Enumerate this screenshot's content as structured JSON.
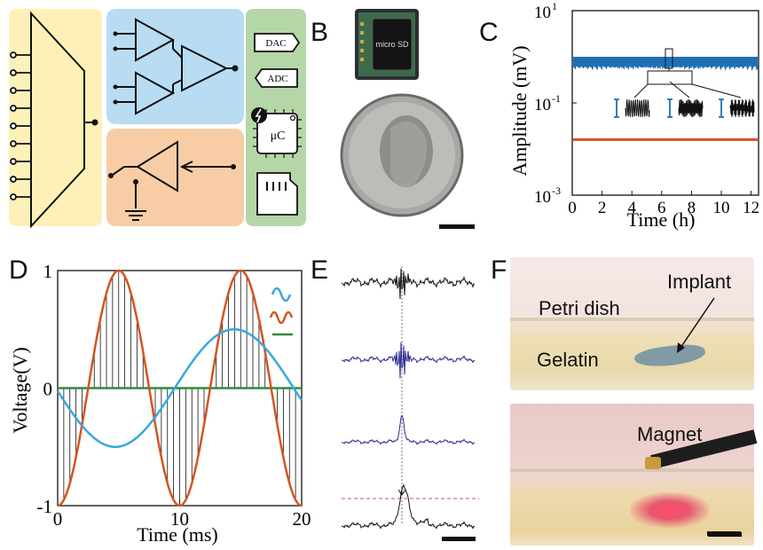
{
  "panels": {
    "A": {
      "label": "A",
      "chips": {
        "dac": "DAC",
        "adc": "ADC",
        "mcu": "μC"
      },
      "colors": {
        "mux": "#fdf1b8",
        "amp": "#b8dcf2",
        "stim": "#f8cda6",
        "ctrl": "#b5d7a8"
      }
    },
    "B": {
      "label": "B",
      "card_text": "micro SD"
    },
    "C": {
      "label": "C",
      "ylabel": "Amplitude (mV)",
      "xlabel": "Time (h)",
      "yticks": [
        "10",
        "10",
        "10"
      ],
      "yexp": [
        "1",
        "-1",
        "-3"
      ],
      "xticks": [
        "0",
        "2",
        "4",
        "6",
        "8",
        "10",
        "12"
      ]
    },
    "D": {
      "label": "D",
      "ylabel": "Voltage(V)",
      "xlabel": "Time (ms)",
      "yticks": [
        "1",
        "0",
        "-1"
      ],
      "xticks": [
        "0",
        "10",
        "20"
      ]
    },
    "E": {
      "label": "E"
    },
    "F": {
      "label": "F",
      "petri": "Petri dish",
      "implant": "Implant",
      "gelatin": "Gelatin",
      "magnet": "Magnet"
    }
  },
  "chart_data": [
    {
      "type": "line",
      "panel": "C",
      "xlabel": "Time (h)",
      "ylabel": "Amplitude (mV)",
      "xlim": [
        0,
        12.5
      ],
      "ylim": [
        0.001,
        10
      ],
      "yscale": "log",
      "series": [
        {
          "color": "#1f6fb5",
          "values_x": [
            0,
            12.5
          ],
          "values_y": [
            0.8,
            0.8
          ]
        },
        {
          "color": "#d94f2a",
          "values_x": [
            0,
            12.5
          ],
          "values_y": [
            0.016,
            0.016
          ]
        }
      ]
    },
    {
      "type": "line",
      "panel": "D",
      "xlabel": "Time (ms)",
      "ylabel": "Voltage(V)",
      "xlim": [
        0,
        20
      ],
      "ylim": [
        -1,
        1
      ],
      "series": [
        {
          "color": "#d4541f",
          "function": "-cos(2*pi*t/10)",
          "amplitude": 1,
          "period_ms": 10
        },
        {
          "color": "#37a8de",
          "function": "-0.5*sin(2*pi*t/20 + ...)",
          "amplitude": 0.5,
          "period_ms": 20
        },
        {
          "color": "#2e8b3a",
          "values_y": [
            0,
            0
          ]
        }
      ]
    }
  ]
}
